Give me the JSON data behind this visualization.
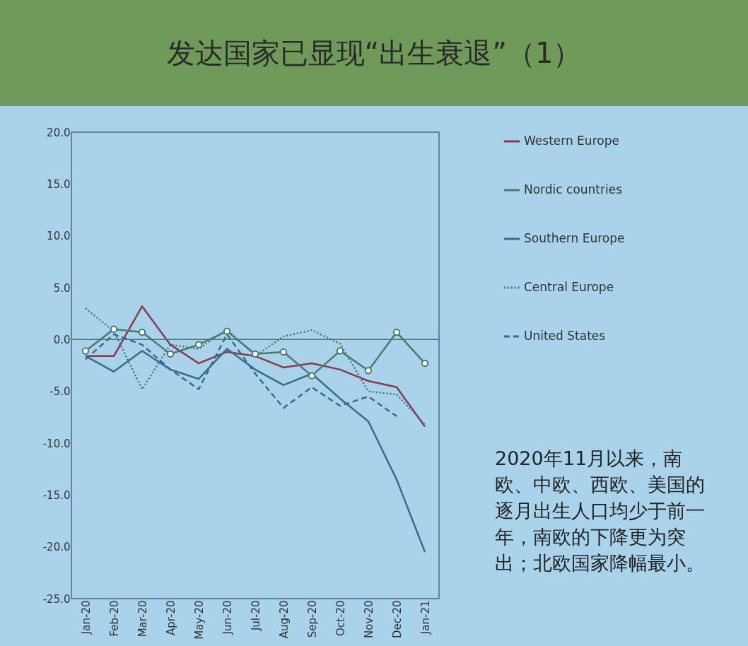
{
  "chart_data": {
    "type": "line",
    "title": "发达国家已显现“出生衰退”（1）",
    "categories": [
      "Jan-20",
      "Feb-20",
      "Mar-20",
      "Apr-20",
      "May-20",
      "Jun-20",
      "Jul-20",
      "Aug-20",
      "Sep-20",
      "Oct-20",
      "Nov-20",
      "Dec-20",
      "Jan-21"
    ],
    "series": [
      {
        "name": "Western Europe",
        "color": "#8b3a4a",
        "line_style": "solid",
        "values": [
          -1.6,
          -1.6,
          3.2,
          -0.5,
          -2.3,
          -1.2,
          -1.6,
          -2.7,
          -2.3,
          -2.9,
          -4.0,
          -4.6,
          -8.4
        ]
      },
      {
        "name": "Nordic countries",
        "color": "#4a7a6a",
        "line_style": "solid",
        "marker": "circle",
        "values": [
          -1.1,
          1.0,
          0.7,
          -1.4,
          -0.5,
          0.8,
          -1.4,
          -1.2,
          -3.5,
          -1.1,
          -3.0,
          0.7,
          -2.3
        ]
      },
      {
        "name": "Southern Europe",
        "color": "#3d6a8a",
        "line_style": "solid",
        "values": [
          -1.6,
          -3.1,
          -1.1,
          -2.9,
          -3.8,
          -0.9,
          -2.9,
          -4.4,
          -3.3,
          -5.7,
          -7.9,
          -13.5,
          -20.5
        ]
      },
      {
        "name": "Central Europe",
        "color": "#4a6a8a",
        "line_style": "dotted",
        "values": [
          3.0,
          0.8,
          -4.8,
          -0.5,
          -0.9,
          1.0,
          -1.6,
          0.3,
          0.9,
          -0.4,
          -5.0,
          -5.3,
          -8.2
        ]
      },
      {
        "name": "United States",
        "color": "#3a6a90",
        "line_style": "dashed",
        "values": [
          -1.9,
          0.5,
          -0.5,
          -2.9,
          -4.8,
          0.5,
          -3.3,
          -6.6,
          -4.6,
          -6.4,
          -5.5,
          -7.4,
          null
        ]
      }
    ],
    "ylim": [
      -25,
      20
    ],
    "yticks": [
      {
        "value": -25,
        "label": "-25.0"
      },
      {
        "value": -20,
        "label": "-20.0"
      },
      {
        "value": -15,
        "label": "-15.0"
      },
      {
        "value": -10,
        "label": "-10.0"
      },
      {
        "value": -5,
        "label": "-5.0"
      },
      {
        "value": 0,
        "label": "0.0"
      },
      {
        "value": 5,
        "label": "5.0"
      },
      {
        "value": 10,
        "label": "10.0"
      },
      {
        "value": 15,
        "label": "15.0"
      },
      {
        "value": 20,
        "label": "20.0"
      }
    ],
    "ref_lines": [
      {
        "axis": "y",
        "value": 0,
        "color": "#4a7a6a"
      }
    ],
    "grid": false,
    "legend": "right",
    "annotations": [
      "2020年11月以来，南欧、中欧、西欧、美国的逐月出生人口均少于前一年，南欧的下降更为突出；北欧国家降幅最小。"
    ]
  }
}
